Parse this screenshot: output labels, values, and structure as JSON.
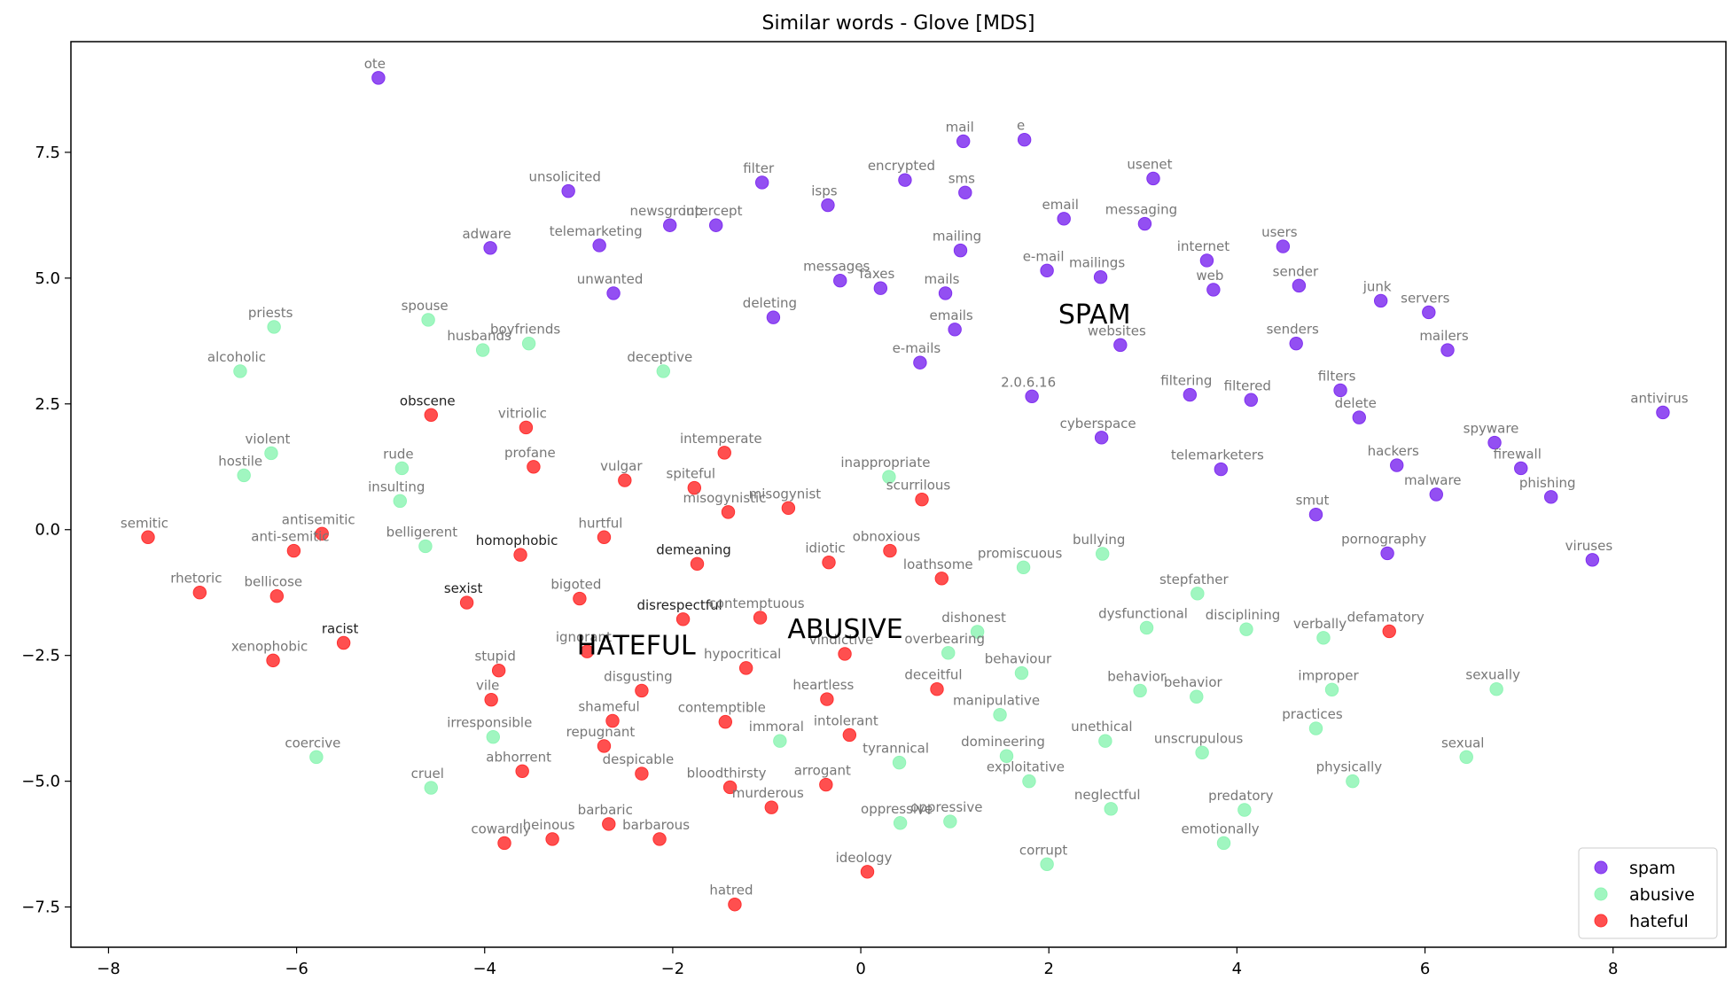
{
  "chart_data": {
    "type": "scatter",
    "title": "Similar words - Glove [MDS]",
    "xlabel": "",
    "ylabel": "",
    "xlim": [
      -8.4,
      9.2
    ],
    "ylim": [
      -8.3,
      9.7
    ],
    "xticks": [
      -8,
      -6,
      -4,
      -2,
      0,
      2,
      4,
      6,
      8
    ],
    "xtick_labels": [
      "−8",
      "−6",
      "−4",
      "−2",
      "0",
      "2",
      "4",
      "6",
      "8"
    ],
    "yticks": [
      -7.5,
      -5.0,
      -2.5,
      0.0,
      2.5,
      5.0,
      7.5
    ],
    "ytick_labels": [
      "−7.5",
      "−5.0",
      "−2.5",
      "0.0",
      "2.5",
      "5.0",
      "7.5"
    ],
    "legend_position": "bottom-right",
    "series": [
      {
        "name": "spam",
        "color": "#8030f0",
        "points": [
          {
            "w": "ote",
            "x": -5.13,
            "y": 8.98
          },
          {
            "w": "mail",
            "x": 1.09,
            "y": 7.72
          },
          {
            "w": "e",
            "x": 1.74,
            "y": 7.75
          },
          {
            "w": "unsolicited",
            "x": -3.11,
            "y": 6.73
          },
          {
            "w": "filter",
            "x": -1.05,
            "y": 6.9
          },
          {
            "w": "encrypted",
            "x": 0.47,
            "y": 6.95
          },
          {
            "w": "sms",
            "x": 1.11,
            "y": 6.7
          },
          {
            "w": "usenet",
            "x": 3.11,
            "y": 6.98
          },
          {
            "w": "isps",
            "x": -0.35,
            "y": 6.45
          },
          {
            "w": "newsgroup",
            "x": -2.03,
            "y": 6.05
          },
          {
            "w": "intercept",
            "x": -1.54,
            "y": 6.05
          },
          {
            "w": "email",
            "x": 2.16,
            "y": 6.18
          },
          {
            "w": "messaging",
            "x": 3.02,
            "y": 6.08
          },
          {
            "w": "adware",
            "x": -3.94,
            "y": 5.6
          },
          {
            "w": "telemarketing",
            "x": -2.78,
            "y": 5.65
          },
          {
            "w": "mailing",
            "x": 1.06,
            "y": 5.55
          },
          {
            "w": "users",
            "x": 4.49,
            "y": 5.63
          },
          {
            "w": "e-mail",
            "x": 1.98,
            "y": 5.15
          },
          {
            "w": "mailings",
            "x": 2.55,
            "y": 5.02
          },
          {
            "w": "internet",
            "x": 3.68,
            "y": 5.35
          },
          {
            "w": "unwanted",
            "x": -2.63,
            "y": 4.7
          },
          {
            "w": "messages",
            "x": -0.22,
            "y": 4.95
          },
          {
            "w": "faxes",
            "x": 0.21,
            "y": 4.8
          },
          {
            "w": "mails",
            "x": 0.9,
            "y": 4.7
          },
          {
            "w": "web",
            "x": 3.75,
            "y": 4.77
          },
          {
            "w": "sender",
            "x": 4.66,
            "y": 4.85
          },
          {
            "w": "junk",
            "x": 5.53,
            "y": 4.55
          },
          {
            "w": "servers",
            "x": 6.04,
            "y": 4.32
          },
          {
            "w": "deleting",
            "x": -0.93,
            "y": 4.22
          },
          {
            "w": "emails",
            "x": 1.0,
            "y": 3.98
          },
          {
            "w": "websites",
            "x": 2.76,
            "y": 3.67
          },
          {
            "w": "senders",
            "x": 4.63,
            "y": 3.7
          },
          {
            "w": "mailers",
            "x": 6.24,
            "y": 3.57
          },
          {
            "w": "e-mails",
            "x": 0.63,
            "y": 3.32
          },
          {
            "w": "2.0.6.16",
            "x": 1.82,
            "y": 2.65
          },
          {
            "w": "filtering",
            "x": 3.5,
            "y": 2.68
          },
          {
            "w": "filtered",
            "x": 4.15,
            "y": 2.58
          },
          {
            "w": "filters",
            "x": 5.1,
            "y": 2.77
          },
          {
            "w": "delete",
            "x": 5.3,
            "y": 2.23
          },
          {
            "w": "antivirus",
            "x": 8.53,
            "y": 2.33
          },
          {
            "w": "cyberspace",
            "x": 2.56,
            "y": 1.83
          },
          {
            "w": "spyware",
            "x": 6.74,
            "y": 1.73
          },
          {
            "w": "hackers",
            "x": 5.7,
            "y": 1.28
          },
          {
            "w": "telemarketers",
            "x": 3.83,
            "y": 1.2
          },
          {
            "w": "firewall",
            "x": 7.02,
            "y": 1.22
          },
          {
            "w": "malware",
            "x": 6.12,
            "y": 0.7
          },
          {
            "w": "phishing",
            "x": 7.34,
            "y": 0.65
          },
          {
            "w": "smut",
            "x": 4.84,
            "y": 0.3
          },
          {
            "w": "pornography",
            "x": 5.6,
            "y": -0.47
          },
          {
            "w": "viruses",
            "x": 7.78,
            "y": -0.6
          }
        ]
      },
      {
        "name": "abusive",
        "color": "#8ff5b5",
        "points": [
          {
            "w": "priests",
            "x": -6.24,
            "y": 4.03
          },
          {
            "w": "spouse",
            "x": -4.6,
            "y": 4.17
          },
          {
            "w": "boyfriends",
            "x": -3.53,
            "y": 3.7
          },
          {
            "w": "husbands",
            "x": -4.02,
            "y": 3.57
          },
          {
            "w": "alcoholic",
            "x": -6.6,
            "y": 3.15
          },
          {
            "w": "deceptive",
            "x": -2.1,
            "y": 3.15
          },
          {
            "w": "violent",
            "x": -6.27,
            "y": 1.52
          },
          {
            "w": "rude",
            "x": -4.88,
            "y": 1.22
          },
          {
            "w": "hostile",
            "x": -6.56,
            "y": 1.08
          },
          {
            "w": "inappropriate",
            "x": 0.3,
            "y": 1.05
          },
          {
            "w": "insulting",
            "x": -4.9,
            "y": 0.57
          },
          {
            "w": "belligerent",
            "x": -4.63,
            "y": -0.33
          },
          {
            "w": "bullying",
            "x": 2.57,
            "y": -0.48
          },
          {
            "w": "promiscuous",
            "x": 1.73,
            "y": -0.75
          },
          {
            "w": "stepfather",
            "x": 3.58,
            "y": -1.27
          },
          {
            "w": "dysfunctional",
            "x": 3.04,
            "y": -1.95
          },
          {
            "w": "disciplining",
            "x": 4.1,
            "y": -1.98
          },
          {
            "w": "dishonest",
            "x": 1.24,
            "y": -2.03
          },
          {
            "w": "verbally",
            "x": 4.92,
            "y": -2.15
          },
          {
            "w": "overbearing",
            "x": 0.93,
            "y": -2.45
          },
          {
            "w": "behaviour",
            "x": 1.71,
            "y": -2.85
          },
          {
            "w": "behavior",
            "x": 2.97,
            "y": -3.2
          },
          {
            "w": "behavior",
            "x": 3.57,
            "y": -3.32
          },
          {
            "w": "improper",
            "x": 5.01,
            "y": -3.18
          },
          {
            "w": "sexually",
            "x": 6.76,
            "y": -3.17
          },
          {
            "w": "manipulative",
            "x": 1.48,
            "y": -3.68
          },
          {
            "w": "practices",
            "x": 4.84,
            "y": -3.95
          },
          {
            "w": "irresponsible",
            "x": -3.91,
            "y": -4.12
          },
          {
            "w": "immoral",
            "x": -0.86,
            "y": -4.2
          },
          {
            "w": "unethical",
            "x": 2.6,
            "y": -4.2
          },
          {
            "w": "unscrupulous",
            "x": 3.63,
            "y": -4.43
          },
          {
            "w": "coercive",
            "x": -5.79,
            "y": -4.52
          },
          {
            "w": "domineering",
            "x": 1.55,
            "y": -4.5
          },
          {
            "w": "sexual",
            "x": 6.44,
            "y": -4.52
          },
          {
            "w": "tyrannical",
            "x": 0.41,
            "y": -4.63
          },
          {
            "w": "physically",
            "x": 5.23,
            "y": -5.0
          },
          {
            "w": "exploitative",
            "x": 1.79,
            "y": -5.0
          },
          {
            "w": "cruel",
            "x": -4.57,
            "y": -5.13
          },
          {
            "w": "neglectful",
            "x": 2.66,
            "y": -5.55
          },
          {
            "w": "predatory",
            "x": 4.08,
            "y": -5.57
          },
          {
            "w": "oppressive",
            "x": 0.42,
            "y": -5.83
          },
          {
            "w": "oppressive",
            "x": 0.95,
            "y": -5.8
          },
          {
            "w": "emotionally",
            "x": 3.86,
            "y": -6.23
          },
          {
            "w": "corrupt",
            "x": 1.98,
            "y": -6.65
          }
        ]
      },
      {
        "name": "hateful",
        "color": "#ff3030",
        "points": [
          {
            "w": "obscene",
            "x": -4.57,
            "y": 2.28
          },
          {
            "w": "vitriolic",
            "x": -3.56,
            "y": 2.03
          },
          {
            "w": "intemperate",
            "x": -1.45,
            "y": 1.53
          },
          {
            "w": "profane",
            "x": -3.48,
            "y": 1.25
          },
          {
            "w": "vulgar",
            "x": -2.51,
            "y": 0.98
          },
          {
            "w": "spiteful",
            "x": -1.77,
            "y": 0.83
          },
          {
            "w": "scurrilous",
            "x": 0.65,
            "y": 0.6
          },
          {
            "w": "misogynistic",
            "x": -1.41,
            "y": 0.35
          },
          {
            "w": "misogynist",
            "x": -0.77,
            "y": 0.43
          },
          {
            "w": "semitic",
            "x": -7.58,
            "y": -0.15
          },
          {
            "w": "antisemitic",
            "x": -5.73,
            "y": -0.08
          },
          {
            "w": "anti-semitic",
            "x": -6.03,
            "y": -0.42
          },
          {
            "w": "hurtful",
            "x": -2.73,
            "y": -0.15
          },
          {
            "w": "homophobic",
            "x": -3.62,
            "y": -0.5
          },
          {
            "w": "idiotic",
            "x": -0.34,
            "y": -0.65
          },
          {
            "w": "obnoxious",
            "x": 0.31,
            "y": -0.42
          },
          {
            "w": "demeaning",
            "x": -1.74,
            "y": -0.68
          },
          {
            "w": "loathsome",
            "x": 0.86,
            "y": -0.97
          },
          {
            "w": "rhetoric",
            "x": -7.03,
            "y": -1.25
          },
          {
            "w": "bellicose",
            "x": -6.21,
            "y": -1.32
          },
          {
            "w": "sexist",
            "x": -4.19,
            "y": -1.45
          },
          {
            "w": "bigoted",
            "x": -2.99,
            "y": -1.37
          },
          {
            "w": "disrespectful",
            "x": -1.89,
            "y": -1.78
          },
          {
            "w": "contemptuous",
            "x": -1.07,
            "y": -1.75
          },
          {
            "w": "racist",
            "x": -5.5,
            "y": -2.25
          },
          {
            "w": "ignorant",
            "x": -2.91,
            "y": -2.42
          },
          {
            "w": "vindictive",
            "x": -0.17,
            "y": -2.47
          },
          {
            "w": "defamatory",
            "x": 5.62,
            "y": -2.02
          },
          {
            "w": "xenophobic",
            "x": -6.25,
            "y": -2.6
          },
          {
            "w": "stupid",
            "x": -3.85,
            "y": -2.8
          },
          {
            "w": "hypocritical",
            "x": -1.22,
            "y": -2.75
          },
          {
            "w": "disgusting",
            "x": -2.33,
            "y": -3.2
          },
          {
            "w": "deceitful",
            "x": 0.81,
            "y": -3.17
          },
          {
            "w": "vile",
            "x": -3.93,
            "y": -3.38
          },
          {
            "w": "heartless",
            "x": -0.36,
            "y": -3.37
          },
          {
            "w": "shameful",
            "x": -2.64,
            "y": -3.8
          },
          {
            "w": "contemptible",
            "x": -1.44,
            "y": -3.82
          },
          {
            "w": "intolerant",
            "x": -0.12,
            "y": -4.08
          },
          {
            "w": "repugnant",
            "x": -2.73,
            "y": -4.3
          },
          {
            "w": "abhorrent",
            "x": -3.6,
            "y": -4.8
          },
          {
            "w": "despicable",
            "x": -2.33,
            "y": -4.85
          },
          {
            "w": "bloodthirsty",
            "x": -1.39,
            "y": -5.12
          },
          {
            "w": "arrogant",
            "x": -0.37,
            "y": -5.07
          },
          {
            "w": "murderous",
            "x": -0.95,
            "y": -5.52
          },
          {
            "w": "barbaric",
            "x": -2.68,
            "y": -5.85
          },
          {
            "w": "cowardly",
            "x": -3.79,
            "y": -6.23
          },
          {
            "w": "heinous",
            "x": -3.28,
            "y": -6.15
          },
          {
            "w": "barbarous",
            "x": -2.14,
            "y": -6.15
          },
          {
            "w": "ideology",
            "x": 0.07,
            "y": -6.8
          },
          {
            "w": "hatred",
            "x": -1.34,
            "y": -7.45
          }
        ]
      }
    ],
    "annotations": [
      {
        "text": "SPAM",
        "x": 2.1,
        "y": 4.1
      },
      {
        "text": "ABUSIVE",
        "x": -0.78,
        "y": -2.15
      },
      {
        "text": "HATEFUL",
        "x": -3.02,
        "y": -2.48
      }
    ]
  }
}
